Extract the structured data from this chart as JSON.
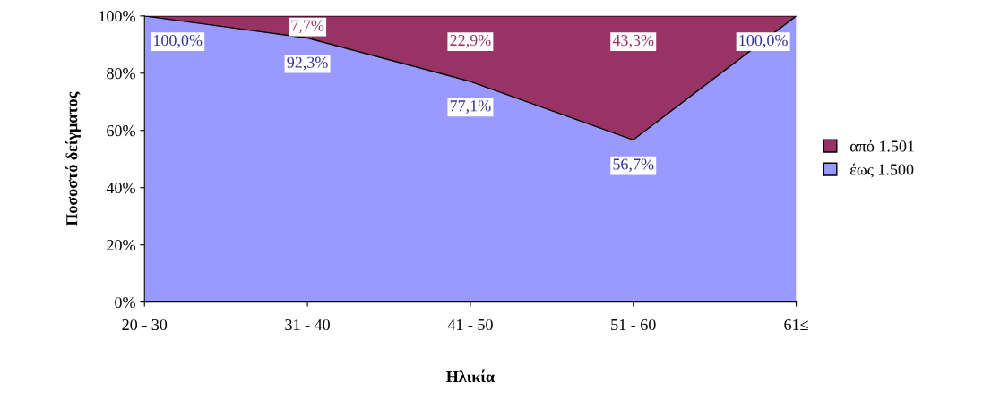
{
  "chart_data": {
    "type": "area",
    "stacked": true,
    "xlabel": "Ηλικία",
    "ylabel": "Ποσοστό δείγματος",
    "categories": [
      "20 - 30",
      "31 - 40",
      "41 - 50",
      "51 - 60",
      "61≤"
    ],
    "series": [
      {
        "name": "έως 1.500",
        "color": "#9999ff",
        "values": [
          100.0,
          92.3,
          77.1,
          56.7,
          100.0
        ],
        "value_labels": [
          "100,0%",
          "92,3%",
          "77,1%",
          "56,7%",
          "100,0%"
        ]
      },
      {
        "name": "από 1.501",
        "color": "#993366",
        "values": [
          0.0,
          7.7,
          22.9,
          43.3,
          0.0
        ],
        "value_labels": [
          null,
          "7,7%",
          "22,9%",
          "43,3%",
          null
        ]
      }
    ],
    "ylim": [
      0,
      100
    ],
    "yticks": [
      {
        "value": 0,
        "label": "0%"
      },
      {
        "value": 20,
        "label": "20%"
      },
      {
        "value": 40,
        "label": "40%"
      },
      {
        "value": 60,
        "label": "60%"
      },
      {
        "value": 80,
        "label": "80%"
      },
      {
        "value": 100,
        "label": "100%"
      }
    ],
    "grid": false,
    "legend": "right"
  }
}
